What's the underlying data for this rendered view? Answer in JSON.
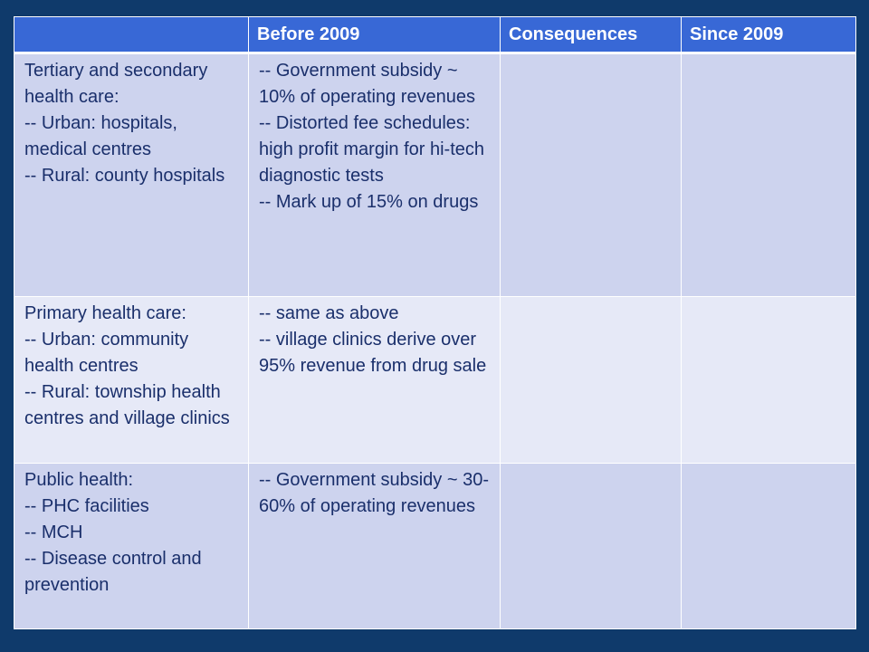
{
  "table": {
    "headers": [
      "",
      "Before 2009",
      "Consequences",
      "Since 2009"
    ],
    "rows": [
      {
        "level": [
          "Tertiary and secondary health care:",
          "-- Urban: hospitals, medical centres",
          "-- Rural: county hospitals"
        ],
        "before_2009": [
          "-- Government subsidy ~ 10% of operating revenues",
          "-- Distorted fee schedules: high profit margin for hi-tech diagnostic tests",
          "-- Mark up of 15% on drugs"
        ],
        "consequences": "",
        "since_2009": ""
      },
      {
        "level": [
          "Primary health care:",
          "-- Urban: community health centres",
          "-- Rural: township health centres and village clinics"
        ],
        "before_2009": [
          "-- same as above",
          "-- village clinics derive over 95% revenue from drug sale"
        ],
        "consequences": "",
        "since_2009": ""
      },
      {
        "level": [
          "Public health:",
          "-- PHC facilities",
          "-- MCH",
          "-- Disease control and prevention"
        ],
        "before_2009": [
          "-- Government subsidy ~ 30-60% of operating revenues"
        ],
        "consequences": "",
        "since_2009": ""
      }
    ]
  },
  "colors": {
    "background": "#0f3a6b",
    "header_fill": "#3868d6",
    "row_dark": "#cdd3ee",
    "row_light": "#e6e9f7",
    "text": "#1a2f6b"
  }
}
